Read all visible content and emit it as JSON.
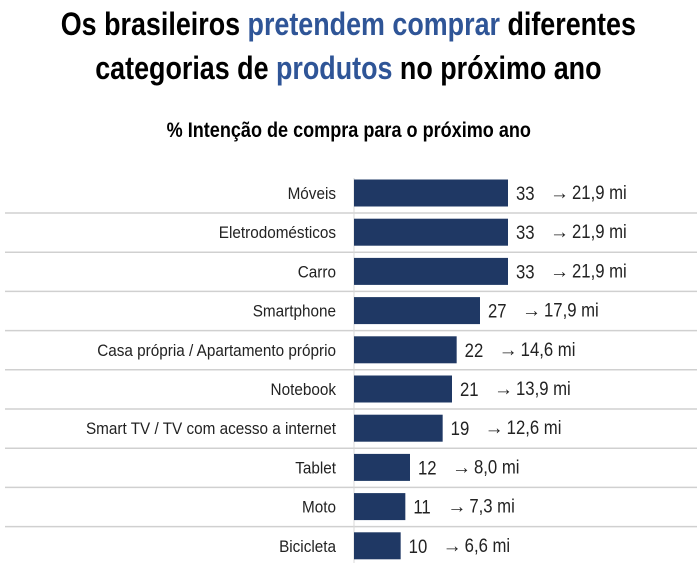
{
  "title": {
    "line1": [
      {
        "text": "Os brasileiros ",
        "hl": false
      },
      {
        "text": "pretendem comprar",
        "hl": true
      },
      {
        "text": " diferentes",
        "hl": false
      }
    ],
    "line2": [
      {
        "text": "categorias de ",
        "hl": false
      },
      {
        "text": "produtos",
        "hl": true
      },
      {
        "text": " no próximo ano",
        "hl": false
      }
    ]
  },
  "colors": {
    "bar": "#1f3864",
    "highlight": "#2f5597",
    "grid": "#d0d0d0"
  },
  "chart_data": {
    "type": "bar",
    "orientation": "horizontal",
    "title": "% Intenção de compra para o próximo ano",
    "xlabel": "",
    "ylabel": "",
    "xlim": [
      0,
      33
    ],
    "categories": [
      "Móveis",
      "Eletrodomésticos",
      "Carro",
      "Smartphone",
      "Casa própria / Apartamento próprio",
      "Notebook",
      "Smart TV / TV com acesso a internet",
      "Tablet",
      "Moto",
      "Bicicleta"
    ],
    "values": [
      33,
      33,
      33,
      27,
      22,
      21,
      19,
      12,
      11,
      10
    ],
    "annotations": [
      "21,9 mi",
      "21,9 mi",
      "21,9 mi",
      "17,9 mi",
      "14,6 mi",
      "13,9 mi",
      "12,6 mi",
      "8,0 mi",
      "7,3 mi",
      "6,6 mi"
    ],
    "arrow": "→"
  }
}
